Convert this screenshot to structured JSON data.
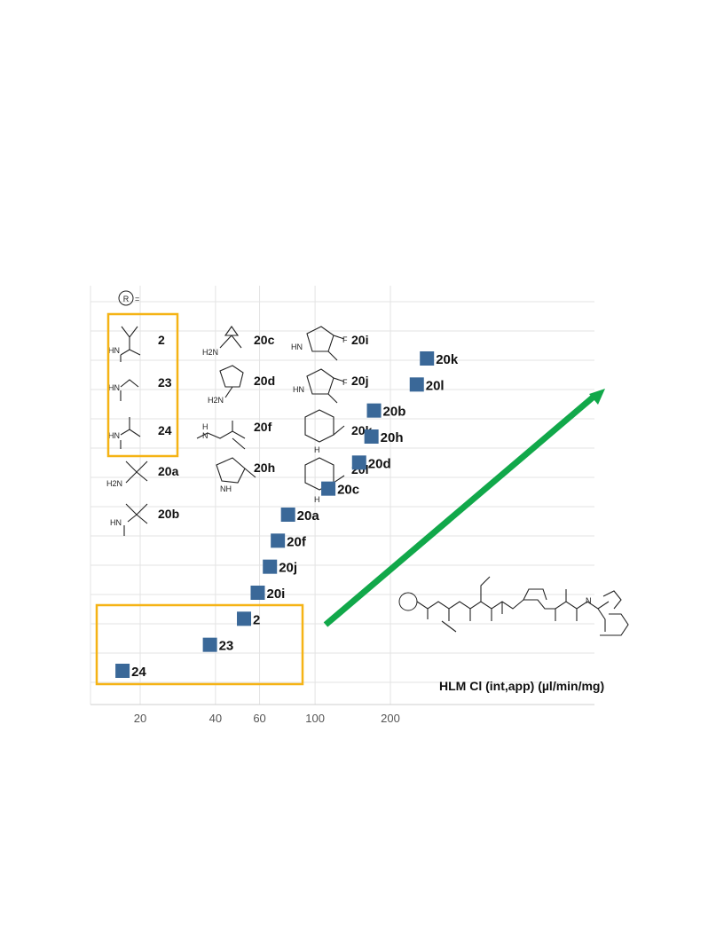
{
  "chart_data": {
    "type": "scatter",
    "xlabel": "HLM Cl (int,app) (µl/min/mg)",
    "x_scale": "log",
    "x_ticks": [
      20,
      40,
      60,
      100,
      200
    ],
    "legend_r_label": "R",
    "legend_r_suffix": "=",
    "grid": true,
    "points": [
      {
        "label": "24",
        "x": 17
      },
      {
        "label": "23",
        "x": 38
      },
      {
        "label": "2",
        "x": 52
      },
      {
        "label": "20i",
        "x": 59
      },
      {
        "label": "20j",
        "x": 66
      },
      {
        "label": "20f",
        "x": 71
      },
      {
        "label": "20a",
        "x": 78
      },
      {
        "label": "20c",
        "x": 113
      },
      {
        "label": "20d",
        "x": 150
      },
      {
        "label": "20h",
        "x": 168
      },
      {
        "label": "20b",
        "x": 172
      },
      {
        "label": "20l",
        "x": 255
      },
      {
        "label": "20k",
        "x": 280
      }
    ],
    "structure_labels": [
      "2",
      "23",
      "24",
      "20a",
      "20b",
      "20c",
      "20d",
      "20f",
      "20h",
      "20i",
      "20j",
      "20k",
      "20l"
    ],
    "colors": {
      "marker": "#3a6898",
      "highlight_box": "#f5b315",
      "arrow": "#11a84a",
      "grid": "#e3e3e3"
    }
  }
}
